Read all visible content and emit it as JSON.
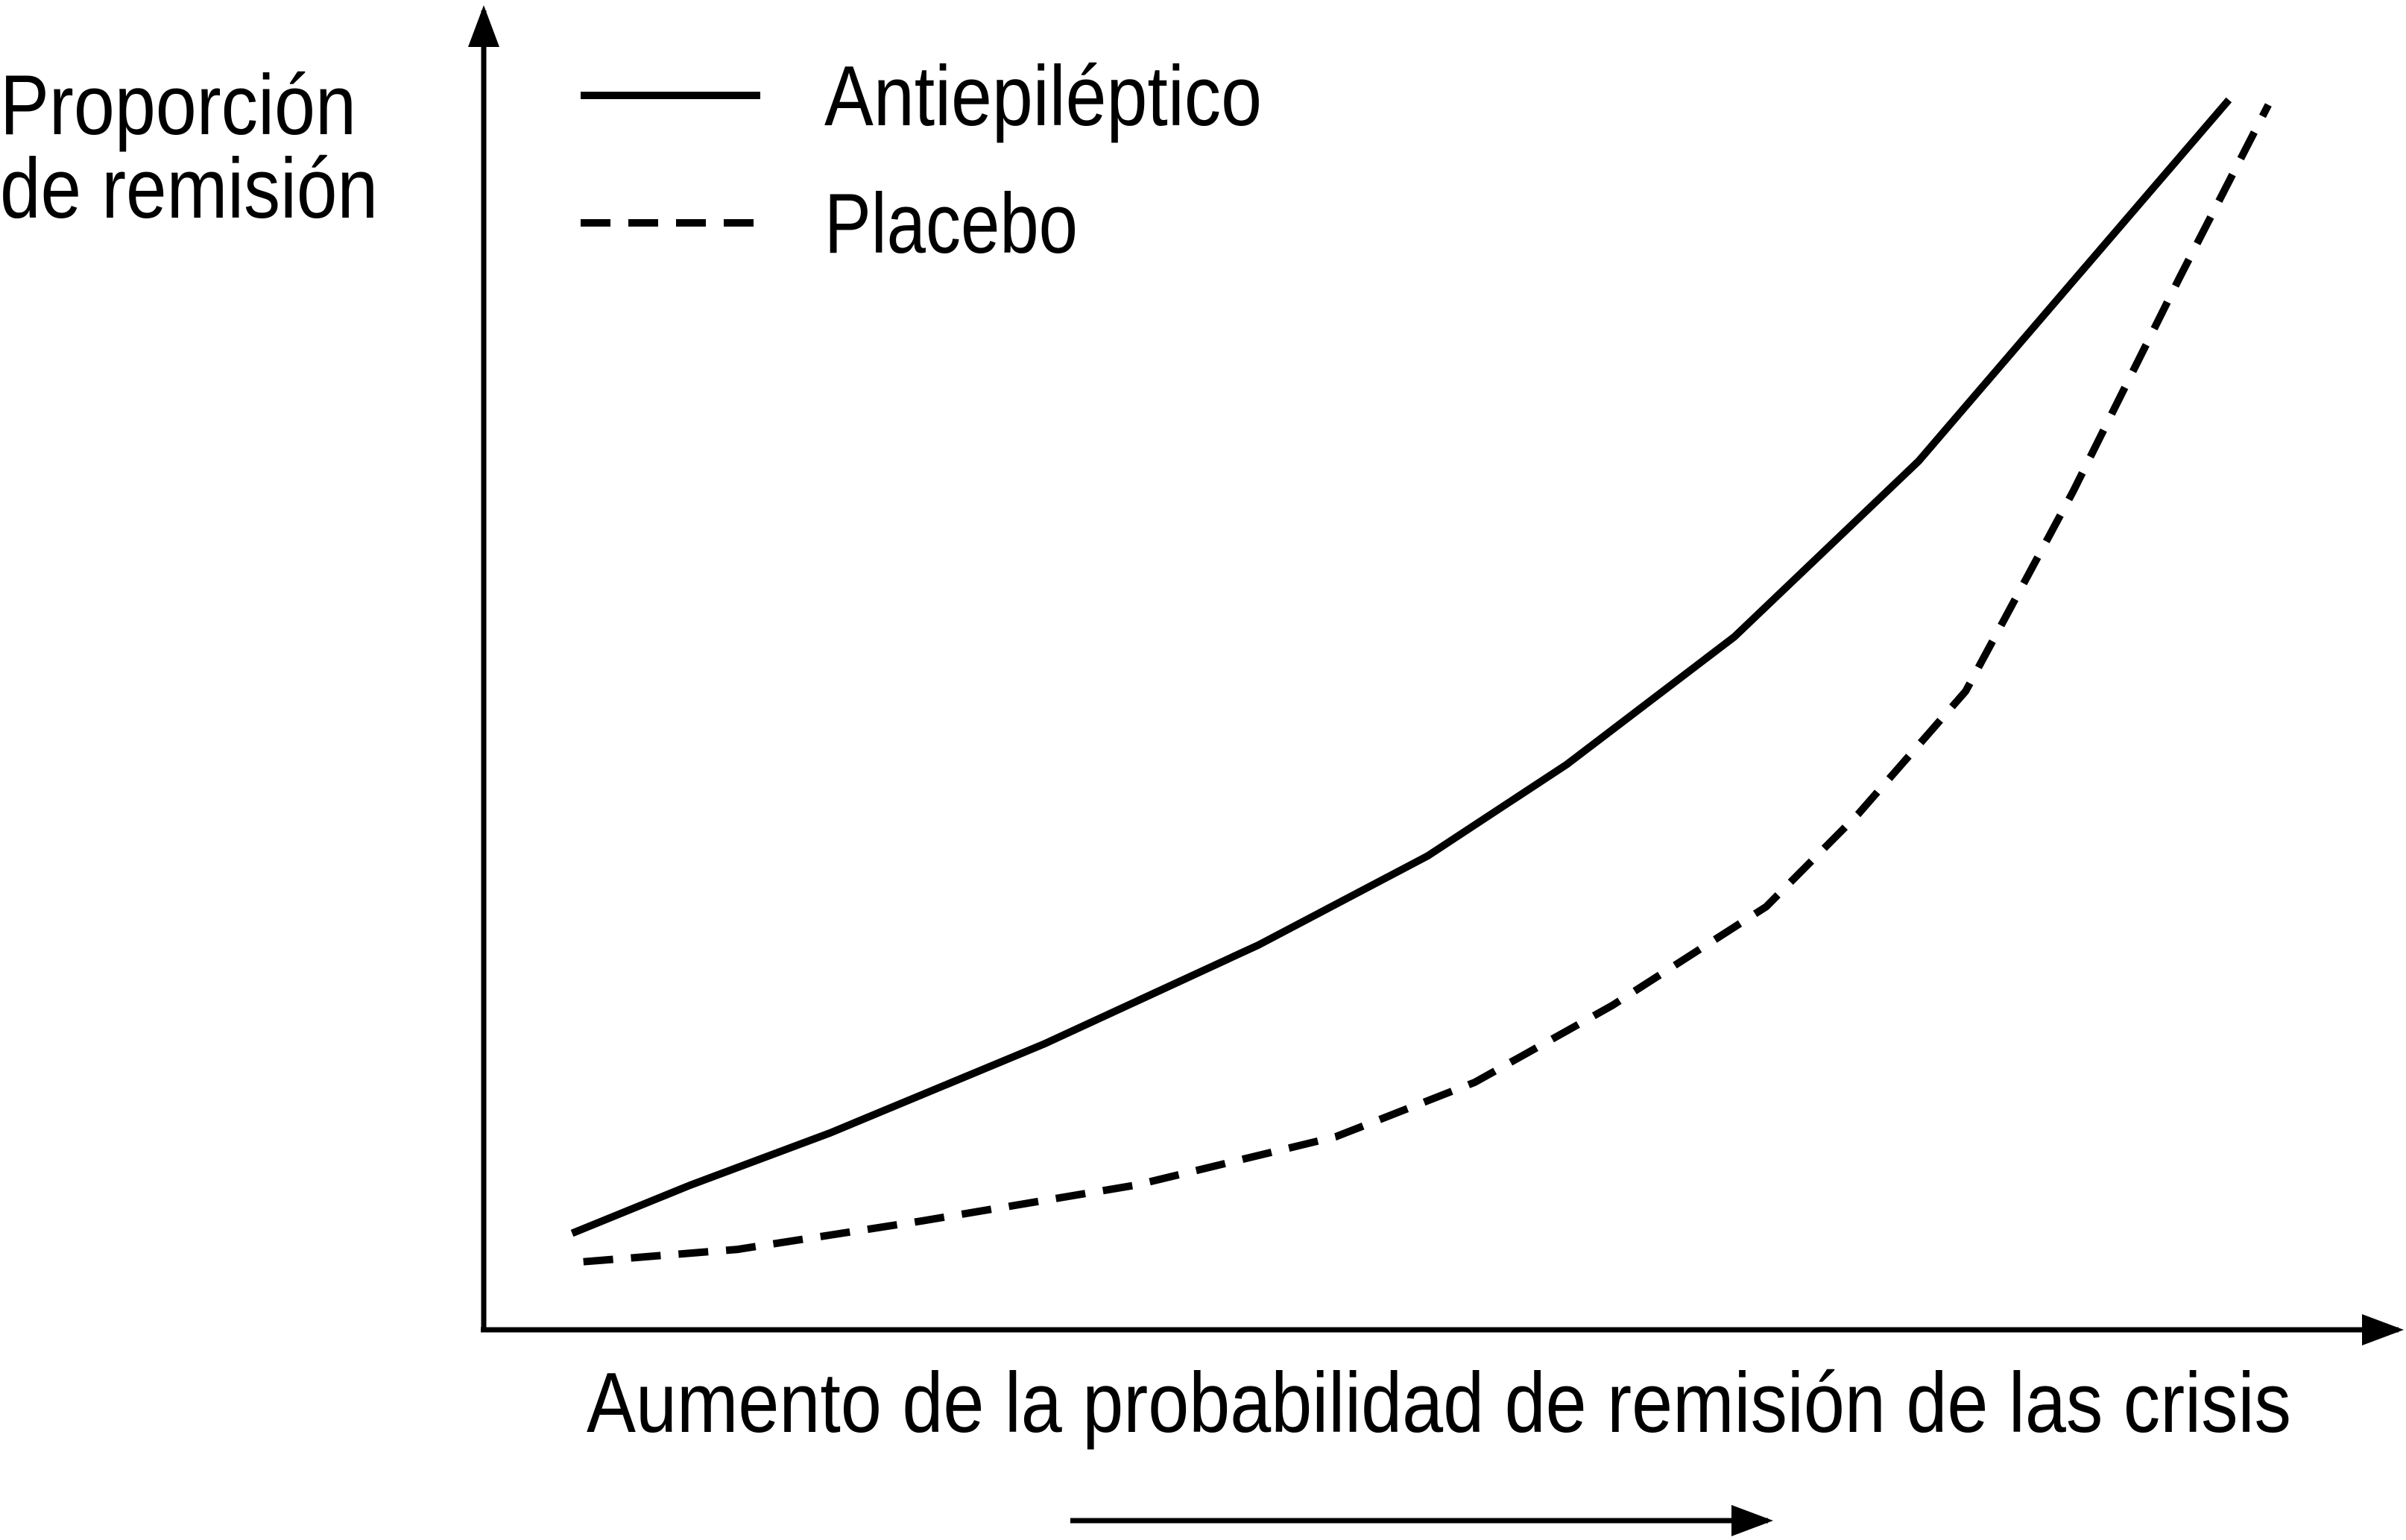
{
  "chart_data": {
    "type": "line",
    "ylabel": [
      "Proporción",
      "de remisión"
    ],
    "xlabel": "Aumento de la probabilidad de remisión de las crisis",
    "xlim": [
      0,
      100
    ],
    "ylim": [
      0,
      100
    ],
    "legend": "top-left",
    "series": [
      {
        "name": "Antiepiléptico",
        "color": "#000000",
        "dash": "solid",
        "x": [
          4.7,
          11.0,
          18.4,
          29.8,
          41.2,
          50.2,
          57.6,
          66.5,
          76.3,
          83.7,
          92.8
        ],
        "values": [
          7.8,
          11.7,
          15.9,
          23.1,
          31.1,
          38.3,
          45.7,
          56.0,
          70.2,
          83.3,
          99.4
        ]
      },
      {
        "name": "Placebo",
        "color": "#000000",
        "dash": "dashed",
        "x": [
          5.3,
          13.5,
          23.3,
          34.7,
          45.3,
          52.7,
          60.0,
          68.2,
          73.1,
          78.8,
          84.5,
          90.2,
          94.9
        ],
        "values": [
          5.5,
          6.5,
          8.8,
          11.7,
          15.6,
          20.0,
          26.2,
          34.2,
          41.7,
          51.6,
          67.7,
          85.1,
          99.0
        ]
      }
    ]
  }
}
